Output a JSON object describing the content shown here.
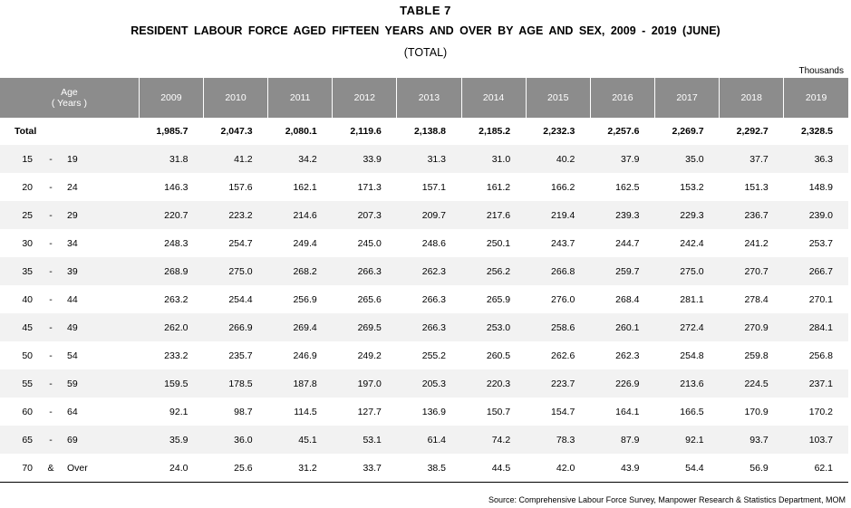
{
  "header": {
    "table_no": "TABLE 7",
    "title": "RESIDENT LABOUR FORCE AGED FIFTEEN YEARS AND OVER BY AGE AND SEX, 2009 - 2019 (JUNE)",
    "subtitle": "(TOTAL)",
    "unit": "Thousands"
  },
  "table": {
    "age_header_line1": "Age",
    "age_header_line2": "( Years )",
    "years": [
      "2009",
      "2010",
      "2011",
      "2012",
      "2013",
      "2014",
      "2015",
      "2016",
      "2017",
      "2018",
      "2019"
    ],
    "total": {
      "label": "Total",
      "values": [
        "1,985.7",
        "2,047.3",
        "2,080.1",
        "2,119.6",
        "2,138.8",
        "2,185.2",
        "2,232.3",
        "2,257.6",
        "2,269.7",
        "2,292.7",
        "2,328.5"
      ]
    },
    "rows": [
      {
        "lo": "15",
        "sep": "-",
        "hi": "19",
        "values": [
          "31.8",
          "41.2",
          "34.2",
          "33.9",
          "31.3",
          "31.0",
          "40.2",
          "37.9",
          "35.0",
          "37.7",
          "36.3"
        ]
      },
      {
        "lo": "20",
        "sep": "-",
        "hi": "24",
        "values": [
          "146.3",
          "157.6",
          "162.1",
          "171.3",
          "157.1",
          "161.2",
          "166.2",
          "162.5",
          "153.2",
          "151.3",
          "148.9"
        ]
      },
      {
        "lo": "25",
        "sep": "-",
        "hi": "29",
        "values": [
          "220.7",
          "223.2",
          "214.6",
          "207.3",
          "209.7",
          "217.6",
          "219.4",
          "239.3",
          "229.3",
          "236.7",
          "239.0"
        ]
      },
      {
        "lo": "30",
        "sep": "-",
        "hi": "34",
        "values": [
          "248.3",
          "254.7",
          "249.4",
          "245.0",
          "248.6",
          "250.1",
          "243.7",
          "244.7",
          "242.4",
          "241.2",
          "253.7"
        ]
      },
      {
        "lo": "35",
        "sep": "-",
        "hi": "39",
        "values": [
          "268.9",
          "275.0",
          "268.2",
          "266.3",
          "262.3",
          "256.2",
          "266.8",
          "259.7",
          "275.0",
          "270.7",
          "266.7"
        ]
      },
      {
        "lo": "40",
        "sep": "-",
        "hi": "44",
        "values": [
          "263.2",
          "254.4",
          "256.9",
          "265.6",
          "266.3",
          "265.9",
          "276.0",
          "268.4",
          "281.1",
          "278.4",
          "270.1"
        ]
      },
      {
        "lo": "45",
        "sep": "-",
        "hi": "49",
        "values": [
          "262.0",
          "266.9",
          "269.4",
          "269.5",
          "266.3",
          "253.0",
          "258.6",
          "260.1",
          "272.4",
          "270.9",
          "284.1"
        ]
      },
      {
        "lo": "50",
        "sep": "-",
        "hi": "54",
        "values": [
          "233.2",
          "235.7",
          "246.9",
          "249.2",
          "255.2",
          "260.5",
          "262.6",
          "262.3",
          "254.8",
          "259.8",
          "256.8"
        ]
      },
      {
        "lo": "55",
        "sep": "-",
        "hi": "59",
        "values": [
          "159.5",
          "178.5",
          "187.8",
          "197.0",
          "205.3",
          "220.3",
          "223.7",
          "226.9",
          "213.6",
          "224.5",
          "237.1"
        ]
      },
      {
        "lo": "60",
        "sep": "-",
        "hi": "64",
        "values": [
          "92.1",
          "98.7",
          "114.5",
          "127.7",
          "136.9",
          "150.7",
          "154.7",
          "164.1",
          "166.5",
          "170.9",
          "170.2"
        ]
      },
      {
        "lo": "65",
        "sep": "-",
        "hi": "69",
        "values": [
          "35.9",
          "36.0",
          "45.1",
          "53.1",
          "61.4",
          "74.2",
          "78.3",
          "87.9",
          "92.1",
          "93.7",
          "103.7"
        ]
      },
      {
        "lo": "70",
        "sep": "&",
        "hi": "Over",
        "values": [
          "24.0",
          "25.6",
          "31.2",
          "33.7",
          "38.5",
          "44.5",
          "42.0",
          "43.9",
          "54.4",
          "56.9",
          "62.1"
        ]
      }
    ]
  },
  "footer": {
    "source": "Source:  Comprehensive Labour Force Survey, Manpower Research & Statistics Department, MOM"
  }
}
